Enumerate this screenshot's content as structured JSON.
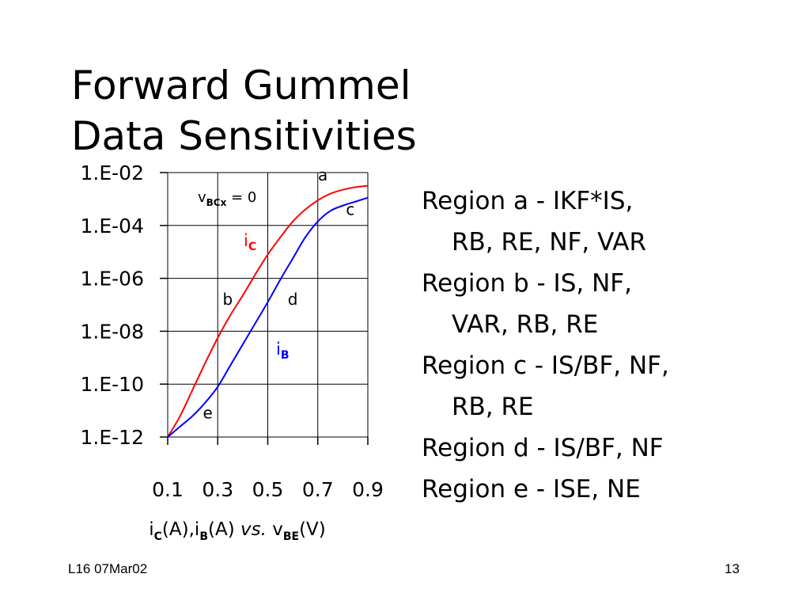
{
  "slide": {
    "title_line1": "Forward Gummel",
    "title_line2": "Data Sensitivities",
    "footer_left": "L16 07Mar02",
    "page_number": "13"
  },
  "regions": [
    {
      "line1": "Region a - IKF*IS,",
      "line2": "RB, RE, NF, VAR"
    },
    {
      "line1": "Region b - IS, NF,",
      "line2": "VAR, RB, RE"
    },
    {
      "line1": "Region c - IS/BF, NF,",
      "line2": "RB, RE"
    },
    {
      "line1": "Region d - IS/BF, NF",
      "line2": ""
    },
    {
      "line1": "Region e - ISE, NE",
      "line2": ""
    }
  ],
  "chart_data": {
    "type": "line",
    "x_ticks": [
      "0.1",
      "0.3",
      "0.5",
      "0.7",
      "0.9"
    ],
    "y_ticks": [
      "1.E-02",
      "1.E-04",
      "1.E-06",
      "1.E-08",
      "1.E-10",
      "1.E-12"
    ],
    "xlim": [
      0.1,
      0.9
    ],
    "ylim_log10": [
      -12,
      -2
    ],
    "y_scale": "log",
    "grid": true,
    "xlabel": {
      "i1": "i",
      "s1": "C",
      "t1": "(A),i",
      "s2": "B",
      "t2": "(A) ",
      "vs": "vs.",
      "t3": " v",
      "s3": "BE",
      "t4": "(V)"
    },
    "condition": {
      "v": "v",
      "sub": "BCx",
      "rest": " = 0"
    },
    "series": [
      {
        "name": "C",
        "prefix": "i",
        "color": "#ff0000",
        "x": [
          0.1,
          0.15,
          0.2,
          0.25,
          0.3,
          0.35,
          0.4,
          0.45,
          0.5,
          0.55,
          0.6,
          0.65,
          0.7,
          0.75,
          0.8,
          0.85,
          0.9
        ],
        "y_log10": [
          -12,
          -11.2,
          -10.2,
          -9.2,
          -8.25,
          -7.4,
          -6.65,
          -5.85,
          -5.1,
          -4.45,
          -3.85,
          -3.4,
          -3.05,
          -2.8,
          -2.65,
          -2.55,
          -2.5
        ]
      },
      {
        "name": "B",
        "prefix": "i",
        "color": "#0000ff",
        "x": [
          0.1,
          0.15,
          0.2,
          0.25,
          0.3,
          0.35,
          0.4,
          0.45,
          0.5,
          0.55,
          0.6,
          0.65,
          0.7,
          0.75,
          0.8,
          0.85,
          0.9
        ],
        "y_log10": [
          -12,
          -11.6,
          -11.2,
          -10.7,
          -10.1,
          -9.3,
          -8.5,
          -7.7,
          -6.9,
          -6.05,
          -5.25,
          -4.45,
          -3.85,
          -3.45,
          -3.25,
          -3.1,
          -2.95
        ]
      }
    ],
    "region_labels": [
      {
        "text": "a",
        "x": 0.72,
        "y_log10": -2.3
      },
      {
        "text": "c",
        "x": 0.83,
        "y_log10": -3.6
      },
      {
        "text": "b",
        "x": 0.34,
        "y_log10": -7.0
      },
      {
        "text": "d",
        "x": 0.6,
        "y_log10": -7.0
      },
      {
        "text": "e",
        "x": 0.26,
        "y_log10": -11.3
      }
    ]
  }
}
